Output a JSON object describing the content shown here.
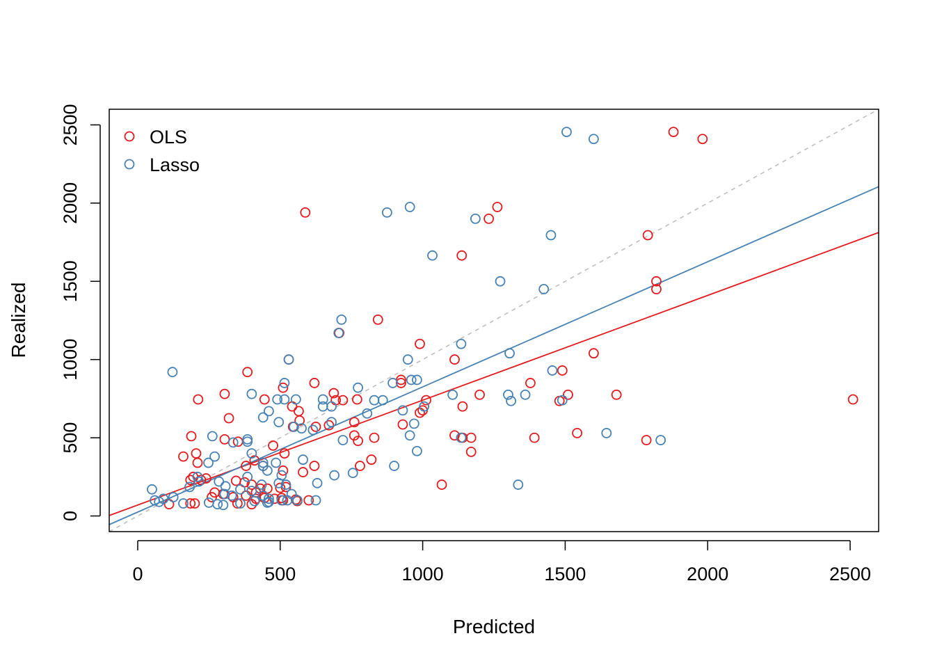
{
  "chart_data": {
    "type": "scatter",
    "title": "",
    "xlabel": "Predicted",
    "ylabel": "Realized",
    "xlim": [
      -100,
      2600
    ],
    "ylim": [
      -100,
      2600
    ],
    "x_ticks": [
      0,
      500,
      1000,
      1500,
      2000,
      2500
    ],
    "y_ticks": [
      0,
      500,
      1000,
      1500,
      2000,
      2500
    ],
    "x_tick_labels": [
      "0",
      "500",
      "1000",
      "1500",
      "2000",
      "2500"
    ],
    "y_tick_labels": [
      "0",
      "500",
      "1000",
      "1500",
      "2000",
      "2500"
    ],
    "grid": false,
    "legend_position": "top-left",
    "reference_line": {
      "intercept": 0,
      "slope": 1,
      "style": "dashed",
      "color": "#bebebe"
    },
    "series": [
      {
        "name": "OLS",
        "color": "#e41a1c",
        "fit": {
          "intercept": 70,
          "slope": 0.67
        },
        "points": [
          [
            588,
            1940
          ],
          [
            1262,
            1975
          ],
          [
            1232,
            1900
          ],
          [
            1880,
            2455
          ],
          [
            1982,
            2410
          ],
          [
            1790,
            1795
          ],
          [
            1137,
            1665
          ],
          [
            1820,
            1500
          ],
          [
            1820,
            1450
          ],
          [
            843,
            1255
          ],
          [
            707,
            1170
          ],
          [
            990,
            1100
          ],
          [
            530,
            1000
          ],
          [
            1112,
            1000
          ],
          [
            1490,
            930
          ],
          [
            1600,
            1040
          ],
          [
            385,
            920
          ],
          [
            924,
            870
          ],
          [
            924,
            850
          ],
          [
            1378,
            850
          ],
          [
            620,
            850
          ],
          [
            510,
            820
          ],
          [
            305,
            780
          ],
          [
            688,
            785
          ],
          [
            1200,
            775
          ],
          [
            1510,
            775
          ],
          [
            1680,
            775
          ],
          [
            1480,
            735
          ],
          [
            212,
            745
          ],
          [
            445,
            745
          ],
          [
            720,
            740
          ],
          [
            770,
            745
          ],
          [
            695,
            740
          ],
          [
            1012,
            740
          ],
          [
            1000,
            675
          ],
          [
            2510,
            745
          ],
          [
            1140,
            700
          ],
          [
            542,
            700
          ],
          [
            565,
            670
          ],
          [
            990,
            660
          ],
          [
            320,
            625
          ],
          [
            568,
            610
          ],
          [
            760,
            600
          ],
          [
            930,
            585
          ],
          [
            545,
            570
          ],
          [
            625,
            570
          ],
          [
            671,
            580
          ],
          [
            1112,
            515
          ],
          [
            1170,
            500
          ],
          [
            1140,
            500
          ],
          [
            830,
            500
          ],
          [
            1392,
            500
          ],
          [
            760,
            515
          ],
          [
            188,
            510
          ],
          [
            773,
            480
          ],
          [
            352,
            475
          ],
          [
            305,
            490
          ],
          [
            1542,
            530
          ],
          [
            1785,
            485
          ],
          [
            475,
            450
          ],
          [
            515,
            400
          ],
          [
            205,
            400
          ],
          [
            1170,
            410
          ],
          [
            160,
            380
          ],
          [
            820,
            360
          ],
          [
            410,
            355
          ],
          [
            440,
            320
          ],
          [
            210,
            340
          ],
          [
            620,
            320
          ],
          [
            780,
            320
          ],
          [
            380,
            320
          ],
          [
            510,
            290
          ],
          [
            580,
            280
          ],
          [
            195,
            250
          ],
          [
            185,
            230
          ],
          [
            222,
            230
          ],
          [
            240,
            240
          ],
          [
            345,
            225
          ],
          [
            375,
            215
          ],
          [
            400,
            200
          ],
          [
            1067,
            200
          ],
          [
            430,
            175
          ],
          [
            455,
            175
          ],
          [
            500,
            180
          ],
          [
            520,
            185
          ],
          [
            270,
            150
          ],
          [
            300,
            140
          ],
          [
            260,
            120
          ],
          [
            335,
            120
          ],
          [
            380,
            130
          ],
          [
            415,
            110
          ],
          [
            445,
            115
          ],
          [
            480,
            110
          ],
          [
            505,
            115
          ],
          [
            555,
            105
          ],
          [
            600,
            100
          ],
          [
            350,
            80
          ],
          [
            400,
            75
          ],
          [
            110,
            75
          ],
          [
            185,
            80
          ],
          [
            200,
            80
          ],
          [
            510,
            100
          ],
          [
            560,
            95
          ],
          [
            415,
            150
          ]
        ]
      },
      {
        "name": "Lasso",
        "color": "#4682b4",
        "fit": {
          "intercept": 25,
          "slope": 0.8
        },
        "points": [
          [
            1505,
            2455
          ],
          [
            1600,
            2410
          ],
          [
            955,
            1975
          ],
          [
            875,
            1940
          ],
          [
            1185,
            1900
          ],
          [
            1450,
            1795
          ],
          [
            1034,
            1665
          ],
          [
            1272,
            1500
          ],
          [
            1425,
            1450
          ],
          [
            715,
            1255
          ],
          [
            705,
            1170
          ],
          [
            1135,
            1100
          ],
          [
            1305,
            1040
          ],
          [
            948,
            1000
          ],
          [
            530,
            1000
          ],
          [
            1455,
            930
          ],
          [
            122,
            920
          ],
          [
            960,
            870
          ],
          [
            980,
            870
          ],
          [
            895,
            850
          ],
          [
            515,
            850
          ],
          [
            773,
            820
          ],
          [
            400,
            780
          ],
          [
            1105,
            775
          ],
          [
            1300,
            775
          ],
          [
            1360,
            775
          ],
          [
            490,
            745
          ],
          [
            515,
            745
          ],
          [
            555,
            745
          ],
          [
            650,
            745
          ],
          [
            1310,
            735
          ],
          [
            830,
            740
          ],
          [
            1490,
            740
          ],
          [
            860,
            740
          ],
          [
            680,
            700
          ],
          [
            650,
            700
          ],
          [
            460,
            670
          ],
          [
            930,
            675
          ],
          [
            805,
            655
          ],
          [
            1005,
            700
          ],
          [
            440,
            630
          ],
          [
            495,
            600
          ],
          [
            680,
            600
          ],
          [
            970,
            590
          ],
          [
            548,
            570
          ],
          [
            575,
            560
          ],
          [
            615,
            550
          ],
          [
            955,
            515
          ],
          [
            1135,
            500
          ],
          [
            1645,
            530
          ],
          [
            1835,
            485
          ],
          [
            720,
            485
          ],
          [
            335,
            470
          ],
          [
            385,
            490
          ],
          [
            385,
            475
          ],
          [
            262,
            510
          ],
          [
            400,
            400
          ],
          [
            270,
            380
          ],
          [
            980,
            415
          ],
          [
            580,
            360
          ],
          [
            440,
            320
          ],
          [
            755,
            275
          ],
          [
            900,
            320
          ],
          [
            440,
            340
          ],
          [
            485,
            340
          ],
          [
            248,
            340
          ],
          [
            455,
            290
          ],
          [
            505,
            260
          ],
          [
            690,
            260
          ],
          [
            385,
            250
          ],
          [
            495,
            210
          ],
          [
            520,
            200
          ],
          [
            435,
            200
          ],
          [
            285,
            220
          ],
          [
            630,
            210
          ],
          [
            1335,
            200
          ],
          [
            210,
            250
          ],
          [
            215,
            220
          ],
          [
            182,
            185
          ],
          [
            308,
            190
          ],
          [
            360,
            170
          ],
          [
            400,
            160
          ],
          [
            50,
            170
          ],
          [
            440,
            130
          ],
          [
            330,
            130
          ],
          [
            305,
            140
          ],
          [
            540,
            140
          ],
          [
            460,
            110
          ],
          [
            125,
            120
          ],
          [
            90,
            110
          ],
          [
            60,
            100
          ],
          [
            75,
            90
          ],
          [
            160,
            80
          ],
          [
            250,
            85
          ],
          [
            280,
            75
          ],
          [
            300,
            70
          ],
          [
            360,
            80
          ],
          [
            410,
            95
          ],
          [
            455,
            85
          ],
          [
            505,
            100
          ],
          [
            525,
            100
          ],
          [
            560,
            100
          ],
          [
            625,
            100
          ],
          [
            460,
            90
          ]
        ]
      }
    ]
  }
}
